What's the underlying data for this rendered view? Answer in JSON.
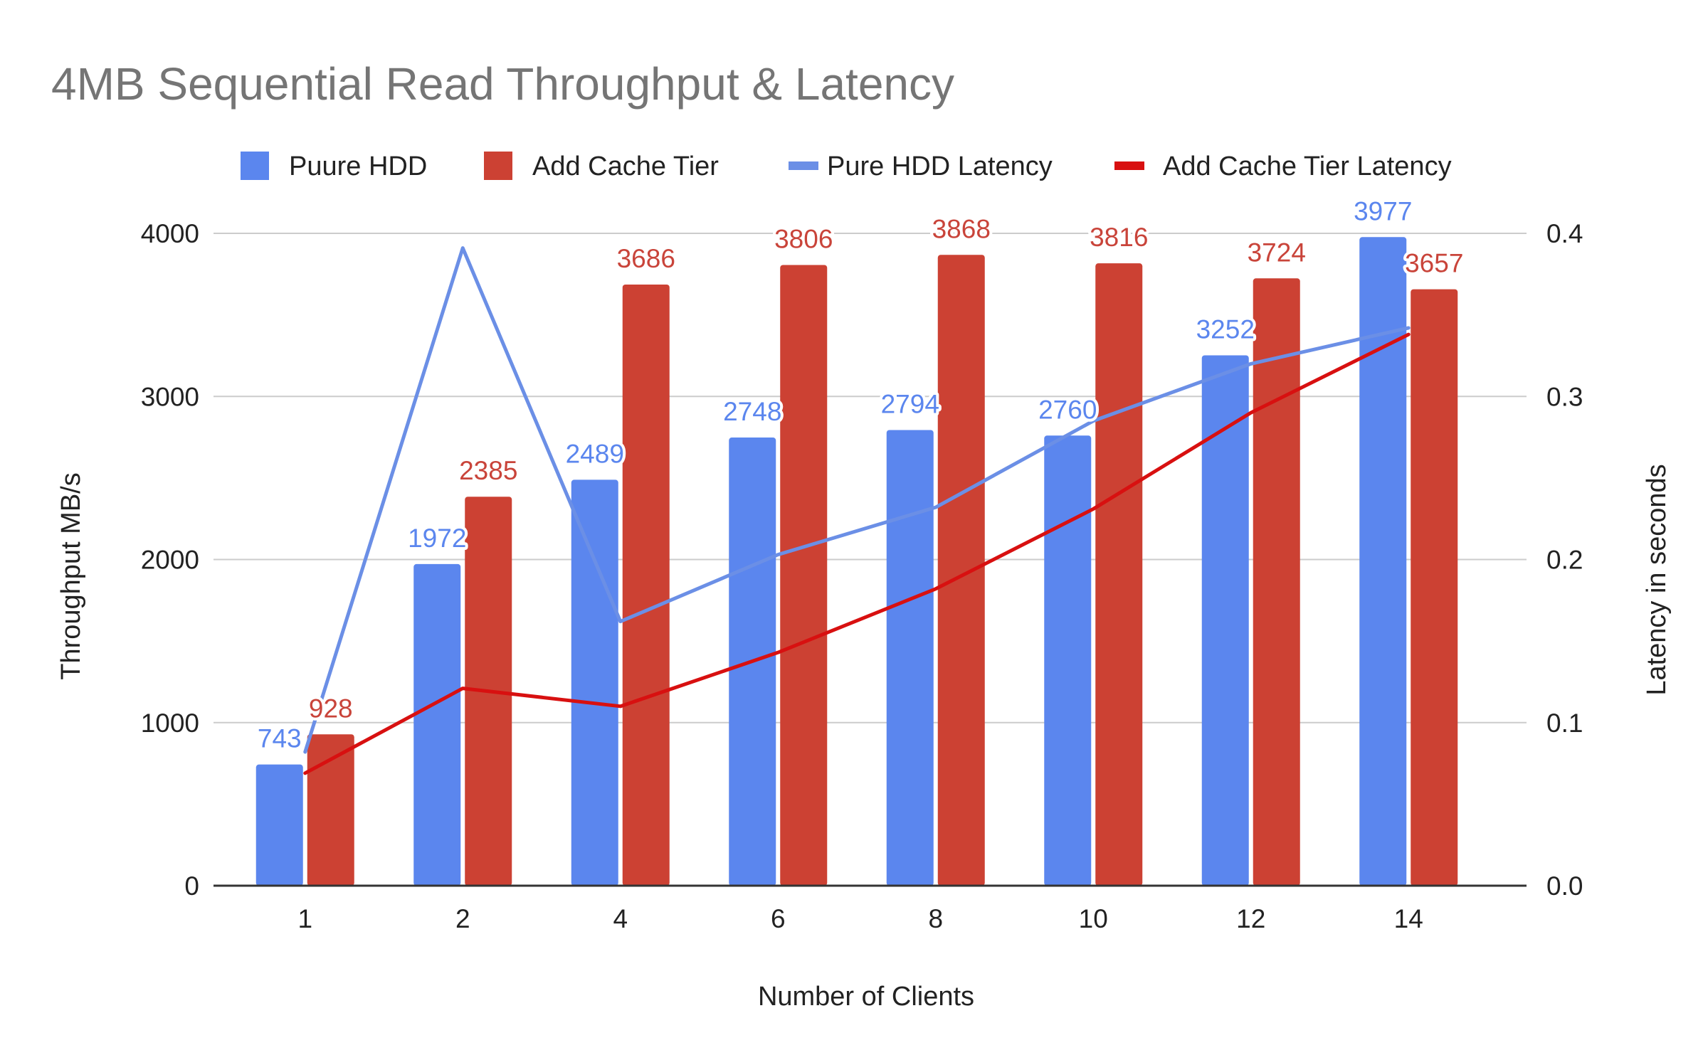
{
  "chart_data": {
    "type": "bar",
    "title": "4MB Sequential Read Throughput & Latency",
    "xlabel": "Number of Clients",
    "ylabel": "Throughput MB/s",
    "y2label": "Latency in seconds",
    "categories": [
      "1",
      "2",
      "4",
      "6",
      "8",
      "10",
      "12",
      "14"
    ],
    "ylim": [
      0,
      4000
    ],
    "y2lim": [
      0.0,
      0.4
    ],
    "yticks": [
      "0",
      "1000",
      "2000",
      "3000",
      "4000"
    ],
    "y2ticks": [
      "0.0",
      "0.1",
      "0.2",
      "0.3",
      "0.4"
    ],
    "grid": true,
    "legend_position": "top",
    "series": [
      {
        "name": "Puure HDD",
        "kind": "bar",
        "axis": "left",
        "color": "#5b86ee",
        "label_color": "#5b86ee",
        "values": [
          743,
          1972,
          2489,
          2748,
          2794,
          2760,
          3252,
          3977
        ],
        "labels": [
          "743",
          "1972",
          "2489",
          "2748",
          "2794",
          "2760",
          "3252",
          "3977"
        ]
      },
      {
        "name": "Add Cache Tier",
        "kind": "bar",
        "axis": "left",
        "color": "#cc4133",
        "label_color": "#c9443a",
        "values": [
          928,
          2385,
          3686,
          3806,
          3868,
          3816,
          3724,
          3657
        ],
        "labels": [
          "928",
          "2385",
          "3686",
          "3806",
          "3868",
          "3816",
          "3724",
          "3657"
        ]
      },
      {
        "name": "Pure HDD Latency",
        "kind": "line",
        "axis": "right",
        "color": "#6b8fe6",
        "values": [
          0.082,
          0.391,
          0.162,
          0.203,
          0.232,
          0.285,
          0.32,
          0.342
        ]
      },
      {
        "name": "Add Cache Tier  Latency",
        "kind": "line",
        "axis": "right",
        "color": "#d81010",
        "values": [
          0.069,
          0.121,
          0.11,
          0.143,
          0.182,
          0.231,
          0.29,
          0.338
        ]
      }
    ]
  }
}
